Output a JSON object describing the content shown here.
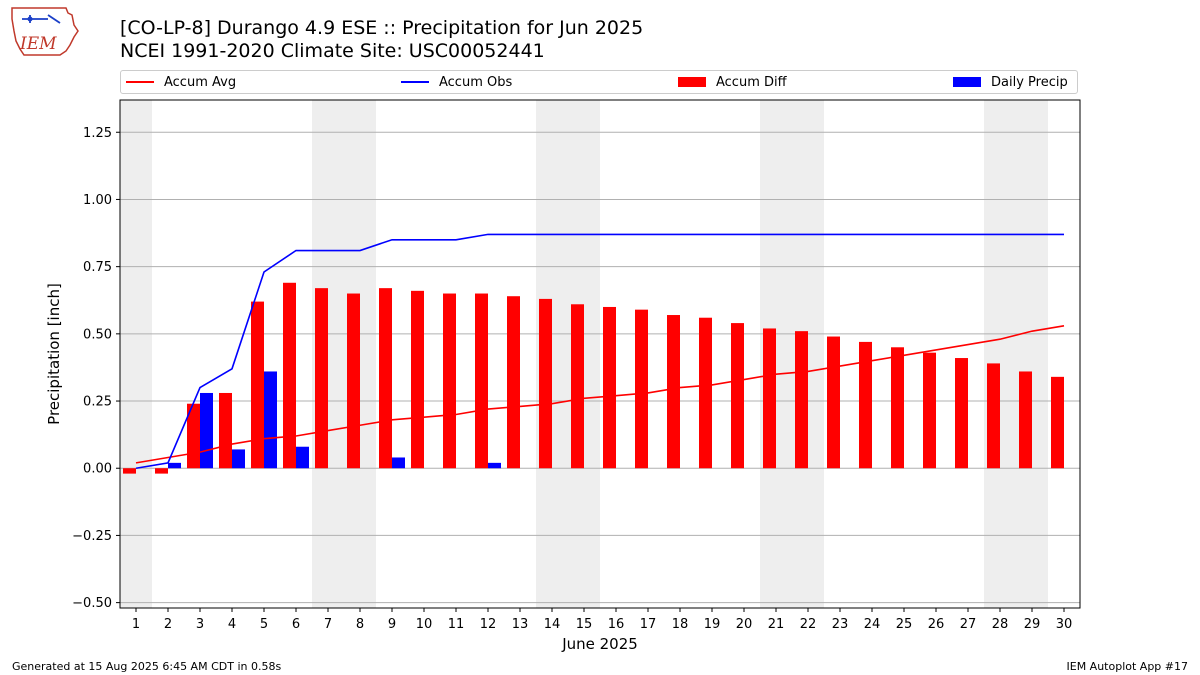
{
  "header": {
    "title_line1": "[CO-LP-8] Durango 4.9 ESE :: Precipitation for Jun 2025",
    "title_line2": "NCEI 1991-2020 Climate Site: USC00052441"
  },
  "logo": {
    "text": "IEM"
  },
  "footer": {
    "generated": "Generated at 15 Aug 2025 6:45 AM CDT in 0.58s",
    "app": "IEM Autoplot App #17"
  },
  "colors": {
    "avg": "#ff0000",
    "obs": "#0000ff",
    "diff": "#ff0000",
    "daily": "#0000ff",
    "weekend": "#eeeeee",
    "grid": "#b0b0b0"
  },
  "chart_data": {
    "type": "bar",
    "xlabel": "June 2025",
    "ylabel": "Precipitation [inch]",
    "ylim": [
      -0.52,
      1.37
    ],
    "yticks": [
      -0.5,
      -0.25,
      0.0,
      0.25,
      0.5,
      0.75,
      1.0,
      1.25
    ],
    "ytick_labels": [
      "−0.50",
      "−0.25",
      "0.00",
      "0.25",
      "0.50",
      "0.75",
      "1.00",
      "1.25"
    ],
    "grid": "horizontal",
    "legend_placement": "top",
    "shaded_days": [
      1,
      7,
      8,
      14,
      15,
      21,
      22,
      28,
      29
    ],
    "x": [
      1,
      2,
      3,
      4,
      5,
      6,
      7,
      8,
      9,
      10,
      11,
      12,
      13,
      14,
      15,
      16,
      17,
      18,
      19,
      20,
      21,
      22,
      23,
      24,
      25,
      26,
      27,
      28,
      29,
      30
    ],
    "series": [
      {
        "name": "Accum Avg",
        "kind": "line",
        "values": [
          0.02,
          0.04,
          0.06,
          0.09,
          0.11,
          0.12,
          0.14,
          0.16,
          0.18,
          0.19,
          0.2,
          0.22,
          0.23,
          0.24,
          0.26,
          0.27,
          0.28,
          0.3,
          0.31,
          0.33,
          0.35,
          0.36,
          0.38,
          0.4,
          0.42,
          0.44,
          0.46,
          0.48,
          0.51,
          0.53
        ]
      },
      {
        "name": "Accum Obs",
        "kind": "line",
        "values": [
          0.0,
          0.02,
          0.3,
          0.37,
          0.73,
          0.81,
          0.81,
          0.81,
          0.85,
          0.85,
          0.85,
          0.87,
          0.87,
          0.87,
          0.87,
          0.87,
          0.87,
          0.87,
          0.87,
          0.87,
          0.87,
          0.87,
          0.87,
          0.87,
          0.87,
          0.87,
          0.87,
          0.87,
          0.87,
          0.87
        ]
      },
      {
        "name": "Accum Diff",
        "kind": "bar",
        "values": [
          -0.02,
          -0.02,
          0.24,
          0.28,
          0.62,
          0.69,
          0.67,
          0.65,
          0.67,
          0.66,
          0.65,
          0.65,
          0.64,
          0.63,
          0.61,
          0.6,
          0.59,
          0.57,
          0.56,
          0.54,
          0.52,
          0.51,
          0.49,
          0.47,
          0.45,
          0.43,
          0.41,
          0.39,
          0.36,
          0.34
        ]
      },
      {
        "name": "Daily Precip",
        "kind": "bar",
        "values": [
          0,
          0.02,
          0.28,
          0.07,
          0.36,
          0.08,
          0,
          0,
          0.04,
          0,
          0,
          0.02,
          0,
          0,
          0,
          0,
          0,
          0,
          0,
          0,
          0,
          0,
          0,
          0,
          0,
          0,
          0,
          0,
          0,
          0
        ]
      }
    ]
  }
}
